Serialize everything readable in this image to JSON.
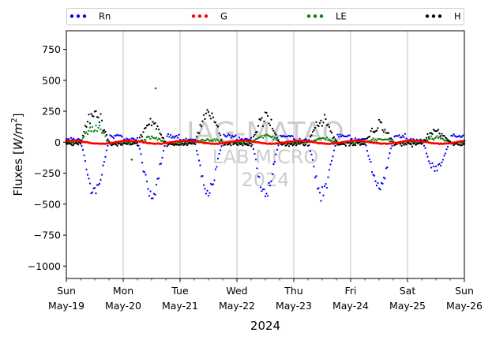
{
  "chart_data": {
    "type": "scatter",
    "title": "",
    "xlabel": "2024",
    "ylabel": "Fluxes [W/m²]",
    "ylabel_parts": {
      "main": "Fluxes [",
      "unit": "W/m",
      "sup": "2",
      "close": "]"
    },
    "ylim": [
      -1100,
      900
    ],
    "y_ticks": [
      750,
      500,
      250,
      0,
      -250,
      -500,
      -750,
      -1000
    ],
    "y_tick_labels": [
      "750",
      "500",
      "250",
      "0",
      "−250",
      "−500",
      "−750",
      "−1000"
    ],
    "x_range_days": [
      0,
      7
    ],
    "x_ticks": [
      {
        "day": "Sun",
        "date": "May-19"
      },
      {
        "day": "Mon",
        "date": "May-20"
      },
      {
        "day": "Tue",
        "date": "May-21"
      },
      {
        "day": "Wed",
        "date": "May-22"
      },
      {
        "day": "Thu",
        "date": "May-23"
      },
      {
        "day": "Fri",
        "date": "May-24"
      },
      {
        "day": "Sat",
        "date": "May-25"
      },
      {
        "day": "Sun",
        "date": "May-26"
      }
    ],
    "grid": "vertical",
    "legend_position": "top",
    "watermark": [
      "IAG-MATAO",
      "LAB MICRO",
      "2024"
    ],
    "series": [
      {
        "name": "Rn",
        "color": "#0000ff",
        "daily_min": [
          -470,
          -480,
          -460,
          -460,
          -480,
          -420,
          -250
        ],
        "night_value": 15
      },
      {
        "name": "G",
        "color": "#ff0000",
        "amplitude": 15
      },
      {
        "name": "LE",
        "color": "#008000",
        "daily_peak": [
          130,
          40,
          25,
          60,
          30,
          30,
          40
        ],
        "outliers": [
          {
            "x": 1.57,
            "y": 435
          },
          {
            "x": 1.15,
            "y": -140
          }
        ]
      },
      {
        "name": "H",
        "color": "#000000",
        "daily_peak": [
          270,
          170,
          260,
          225,
          205,
          155,
          100
        ],
        "night_value": -15
      }
    ]
  }
}
